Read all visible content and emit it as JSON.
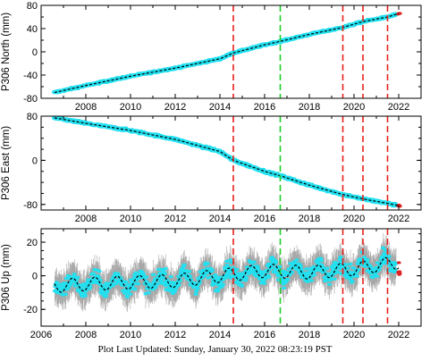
{
  "footer": {
    "label": "Plot Last Updated:",
    "date": "Sunday, January 30, 2022 08:23:19 PST"
  },
  "colors": {
    "data": "#22e0f0",
    "error_bars": "#a8a8a8",
    "model": "#000000",
    "red_event": "#e8211a",
    "green_event": "#1fcf2a",
    "recent_points": "#e02020"
  },
  "chart_data": [
    {
      "type": "line",
      "ylabel": "P306 North (mm)",
      "ylim": [
        -80,
        80
      ],
      "yticks": [
        -80,
        -40,
        0,
        40,
        80
      ],
      "xlim": [
        2006,
        2023
      ],
      "xticks": [
        2008,
        2010,
        2012,
        2014,
        2016,
        2018,
        2020,
        2022
      ],
      "tick_labels_visible": true,
      "grid": false,
      "series": [
        {
          "role": "data",
          "x": [
            2006.6,
            2008,
            2010,
            2012,
            2014,
            2014.6,
            2016,
            2016.7,
            2018,
            2019.5,
            2020.4,
            2021.5,
            2022
          ],
          "values": [
            -70,
            -58,
            -42,
            -28,
            -12,
            -2,
            12,
            18,
            30,
            42,
            52,
            60,
            66
          ]
        },
        {
          "role": "model",
          "x": [
            2006.6,
            2008,
            2010,
            2012,
            2014,
            2014.6,
            2016,
            2016.7,
            2018,
            2019.5,
            2020.4,
            2021.5,
            2022
          ],
          "values": [
            -70,
            -58,
            -42,
            -28,
            -12,
            -2,
            12,
            18,
            30,
            42,
            52,
            60,
            66
          ]
        }
      ],
      "noise": 2,
      "events": {
        "red": [
          2014.6,
          2019.5,
          2020.4,
          2021.5
        ],
        "green": [
          2016.7
        ]
      }
    },
    {
      "type": "line",
      "ylabel": "P306 East (mm)",
      "ylim": [
        -90,
        80
      ],
      "yticks": [
        -80,
        0,
        80
      ],
      "xlim": [
        2006,
        2023
      ],
      "xticks": [
        2008,
        2010,
        2012,
        2014,
        2016,
        2018,
        2020,
        2022
      ],
      "tick_labels_visible": true,
      "grid": false,
      "series": [
        {
          "role": "data",
          "x": [
            2006.6,
            2008,
            2010,
            2012,
            2014,
            2014.6,
            2016,
            2016.7,
            2018,
            2019.5,
            2020.4,
            2021.5,
            2022
          ],
          "values": [
            77,
            67,
            54,
            38,
            16,
            0,
            -20,
            -28,
            -45,
            -62,
            -70,
            -78,
            -82
          ]
        },
        {
          "role": "model",
          "x": [
            2006.6,
            2008,
            2010,
            2012,
            2014,
            2014.6,
            2016,
            2016.7,
            2018,
            2019.5,
            2020.4,
            2021.5,
            2022
          ],
          "values": [
            77,
            67,
            54,
            38,
            16,
            0,
            -20,
            -28,
            -45,
            -62,
            -70,
            -78,
            -82
          ]
        }
      ],
      "noise": 3,
      "events": {
        "red": [
          2014.6,
          2019.5,
          2020.4,
          2021.5
        ],
        "green": [
          2016.7
        ]
      }
    },
    {
      "type": "line",
      "ylabel": "P306 Up (mm)",
      "ylim": [
        -30,
        28
      ],
      "yticks": [
        -20,
        0,
        20
      ],
      "xlim": [
        2006,
        2023
      ],
      "xticks": [
        2006,
        2008,
        2010,
        2012,
        2014,
        2016,
        2018,
        2020,
        2022
      ],
      "tick_labels_visible": true,
      "grid": false,
      "series": [
        {
          "role": "data",
          "x": [
            2006.6,
            2008,
            2010,
            2012,
            2014,
            2016,
            2018,
            2020,
            2022
          ],
          "values": [
            -6,
            -5,
            -4,
            -3,
            0,
            3,
            2,
            4,
            8
          ]
        },
        {
          "role": "model",
          "x": [
            2006.6,
            2008,
            2010,
            2012,
            2014,
            2016,
            2018,
            2020,
            2022
          ],
          "values": [
            -6,
            -5,
            -4,
            -3,
            0,
            3,
            2,
            4,
            8
          ]
        }
      ],
      "seasonal_amplitude": 4,
      "noise": 8,
      "events": {
        "red": [
          2014.6,
          2019.5,
          2020.4,
          2021.5
        ],
        "green": [
          2016.7
        ]
      }
    }
  ]
}
